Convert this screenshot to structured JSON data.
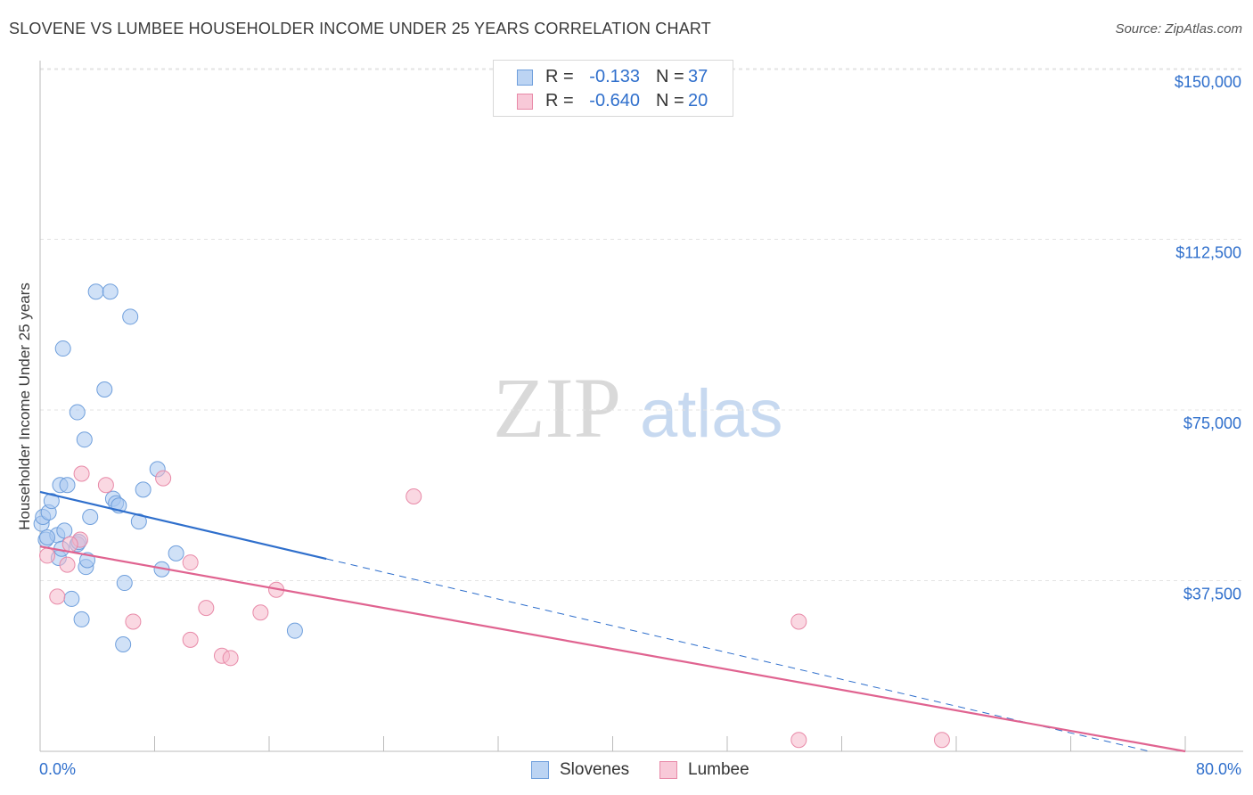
{
  "header": {
    "title": "SLOVENE VS LUMBEE HOUSEHOLDER INCOME UNDER 25 YEARS CORRELATION CHART",
    "source": "Source: ZipAtlas.com"
  },
  "legend": {
    "rows": [
      {
        "r_label": "R =",
        "r_value": "-0.133",
        "n_label": "N =",
        "n_value": "37"
      },
      {
        "r_label": "R =",
        "r_value": "-0.640",
        "n_label": "N =",
        "n_value": "20"
      }
    ]
  },
  "bottom_legend": {
    "items": [
      {
        "label": "Slovenes"
      },
      {
        "label": "Lumbee"
      }
    ]
  },
  "chart_data": {
    "type": "scatter",
    "title": "SLOVENE VS LUMBEE HOUSEHOLDER INCOME UNDER 25 YEARS CORRELATION CHART",
    "ylabel": "Householder Income Under 25 years",
    "xlabel": "",
    "xlim": [
      0,
      80
    ],
    "ylim": [
      0,
      155000
    ],
    "x_tick_labels": [
      "0.0%",
      "80.0%"
    ],
    "y_ticks": [
      37500,
      75000,
      112500,
      150000
    ],
    "y_tick_labels": [
      "$37,500",
      "$75,000",
      "$112,500",
      "$150,000"
    ],
    "grid": true,
    "watermark": {
      "zip": "ZIP",
      "atlas": "atlas"
    },
    "colors": {
      "slovenes_fill": "#a9c8f0",
      "slovenes_stroke": "#6f9fdc",
      "slovenes_line": "#2f6fcc",
      "lumbee_fill": "#f5b8cb",
      "lumbee_stroke": "#e88aa8",
      "lumbee_line": "#e06390",
      "tick_label": "#2f6fcc"
    },
    "series": [
      {
        "name": "Slovenes",
        "points": [
          [
            0.1,
            50000
          ],
          [
            0.2,
            51500
          ],
          [
            0.4,
            46500
          ],
          [
            0.6,
            52500
          ],
          [
            0.8,
            55000
          ],
          [
            1.2,
            47500
          ],
          [
            1.3,
            42500
          ],
          [
            1.4,
            58500
          ],
          [
            1.6,
            88500
          ],
          [
            1.7,
            48500
          ],
          [
            1.9,
            58500
          ],
          [
            2.2,
            33500
          ],
          [
            2.6,
            74500
          ],
          [
            2.6,
            45500
          ],
          [
            2.9,
            29000
          ],
          [
            3.1,
            68500
          ],
          [
            3.2,
            40500
          ],
          [
            3.3,
            42000
          ],
          [
            3.5,
            51500
          ],
          [
            3.9,
            101000
          ],
          [
            4.5,
            79500
          ],
          [
            4.9,
            101000
          ],
          [
            5.1,
            55500
          ],
          [
            5.3,
            54500
          ],
          [
            5.5,
            54000
          ],
          [
            5.9,
            37000
          ],
          [
            5.8,
            23500
          ],
          [
            6.3,
            95500
          ],
          [
            6.9,
            50500
          ],
          [
            7.2,
            57500
          ],
          [
            8.2,
            62000
          ],
          [
            8.5,
            40000
          ],
          [
            9.5,
            43500
          ],
          [
            17.8,
            26500
          ],
          [
            0.5,
            47000
          ],
          [
            1.5,
            44500
          ],
          [
            2.7,
            46000
          ]
        ],
        "trend": {
          "x0": 0,
          "y0": 57000,
          "x1_solid": 20,
          "x1": 77.5,
          "y1": 0
        }
      },
      {
        "name": "Lumbee",
        "points": [
          [
            0.5,
            43000
          ],
          [
            1.2,
            34000
          ],
          [
            1.9,
            41000
          ],
          [
            2.8,
            46500
          ],
          [
            2.9,
            61000
          ],
          [
            4.6,
            58500
          ],
          [
            6.5,
            28500
          ],
          [
            8.6,
            60000
          ],
          [
            10.5,
            24500
          ],
          [
            10.5,
            41500
          ],
          [
            11.6,
            31500
          ],
          [
            12.7,
            21000
          ],
          [
            13.3,
            20500
          ],
          [
            15.4,
            30500
          ],
          [
            16.5,
            35500
          ],
          [
            26.1,
            56000
          ],
          [
            53.0,
            28500
          ],
          [
            53.0,
            2500
          ],
          [
            63.0,
            2500
          ],
          [
            2.1,
            45500
          ]
        ],
        "trend": {
          "x0": 0,
          "y0": 45000,
          "x1": 80,
          "y1": 0
        }
      }
    ]
  }
}
